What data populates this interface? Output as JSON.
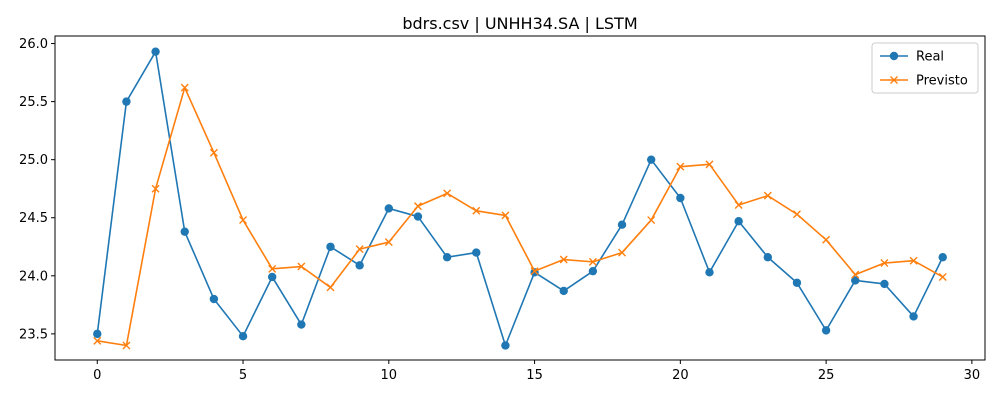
{
  "chart_data": {
    "type": "line",
    "title": "bdrs.csv | UNHH34.SA | LSTM",
    "xlabel": "",
    "ylabel": "",
    "xlim": [
      -1.45,
      30.45
    ],
    "ylim": [
      23.275,
      26.065
    ],
    "x_ticks": [
      0,
      5,
      10,
      15,
      20,
      25,
      30
    ],
    "y_ticks": [
      23.5,
      24.0,
      24.5,
      25.0,
      25.5,
      26.0
    ],
    "x_tick_labels": [
      "0",
      "5",
      "10",
      "15",
      "20",
      "25",
      "30"
    ],
    "y_tick_labels": [
      "23.5",
      "24.0",
      "24.5",
      "25.0",
      "25.5",
      "26.0"
    ],
    "grid": false,
    "legend_position": "top-right",
    "x": [
      0,
      1,
      2,
      3,
      4,
      5,
      6,
      7,
      8,
      9,
      10,
      11,
      12,
      13,
      14,
      15,
      16,
      17,
      18,
      19,
      20,
      21,
      22,
      23,
      24,
      25,
      26,
      27,
      28,
      29
    ],
    "series": [
      {
        "name": "Real",
        "color": "#1f77b4",
        "marker": "circle",
        "values": [
          23.5,
          25.5,
          25.93,
          24.38,
          23.8,
          23.48,
          23.99,
          23.58,
          24.25,
          24.09,
          24.58,
          24.51,
          24.16,
          24.2,
          23.4,
          24.03,
          23.87,
          24.04,
          24.44,
          25.0,
          24.67,
          24.03,
          24.47,
          24.16,
          23.94,
          23.53,
          23.96,
          23.93,
          23.65,
          24.16
        ]
      },
      {
        "name": "Previsto",
        "color": "#ff7f0e",
        "marker": "x",
        "values": [
          23.44,
          23.4,
          24.75,
          25.62,
          25.06,
          24.48,
          24.06,
          24.08,
          23.9,
          24.23,
          24.29,
          24.6,
          24.71,
          24.56,
          24.52,
          24.04,
          24.14,
          24.12,
          24.2,
          24.48,
          24.94,
          24.96,
          24.61,
          24.69,
          24.53,
          24.31,
          24.01,
          24.11,
          24.13,
          23.99
        ]
      }
    ]
  }
}
